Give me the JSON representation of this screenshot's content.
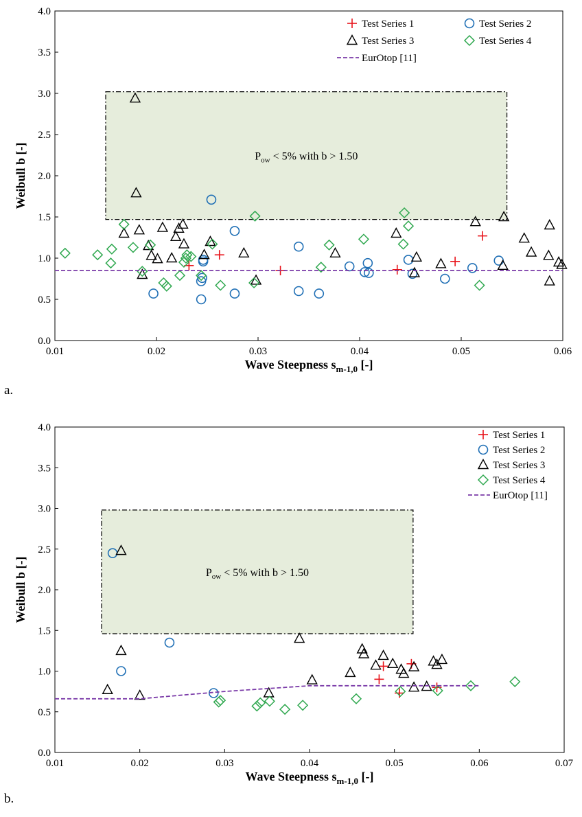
{
  "chart_data": [
    {
      "type": "scatter",
      "panel_label": "a.",
      "xlabel": "Wave Steepness s",
      "xlabel_sub": "m-1,0",
      "xlabel_suffix": " [-]",
      "ylabel": "Weibull b [-]",
      "xlim": [
        0.01,
        0.06
      ],
      "ylim": [
        0.0,
        4.0
      ],
      "x_ticks": [
        "0.01",
        "0.02",
        "0.03",
        "0.04",
        "0.05",
        "0.06"
      ],
      "y_ticks": [
        "0.0",
        "0.5",
        "1.0",
        "1.5",
        "2.0",
        "2.5",
        "3.0",
        "3.5",
        "4.0"
      ],
      "legend_placement": "top-right",
      "legend_columns": 2,
      "region": {
        "x": [
          0.015,
          0.0545
        ],
        "y": [
          1.47,
          3.02
        ],
        "label_pre": "P",
        "label_sub": "ow",
        "label_post": " < 5% with b > 1.50"
      },
      "series": [
        {
          "name": "Test Series 1",
          "marker": "plus",
          "color": "#e8141b",
          "points": [
            [
              0.0232,
              0.91
            ],
            [
              0.0262,
              1.04
            ],
            [
              0.0322,
              0.85
            ],
            [
              0.0437,
              0.86
            ],
            [
              0.0494,
              0.96
            ],
            [
              0.0521,
              1.27
            ]
          ]
        },
        {
          "name": "Test Series 2",
          "marker": "circle",
          "color": "#1f6fb5",
          "points": [
            [
              0.0197,
              0.57
            ],
            [
              0.0244,
              0.5
            ],
            [
              0.0244,
              0.72
            ],
            [
              0.0245,
              0.76
            ],
            [
              0.0246,
              0.96
            ],
            [
              0.0246,
              0.98
            ],
            [
              0.0254,
              1.71
            ],
            [
              0.0277,
              0.57
            ],
            [
              0.0277,
              1.33
            ],
            [
              0.034,
              0.6
            ],
            [
              0.034,
              1.14
            ],
            [
              0.036,
              0.57
            ],
            [
              0.039,
              0.9
            ],
            [
              0.0405,
              0.83
            ],
            [
              0.0408,
              0.94
            ],
            [
              0.0409,
              0.82
            ],
            [
              0.0448,
              0.98
            ],
            [
              0.0452,
              0.81
            ],
            [
              0.0484,
              0.75
            ],
            [
              0.0511,
              0.88
            ],
            [
              0.0537,
              0.97
            ]
          ]
        },
        {
          "name": "Test Series 3",
          "marker": "triangle",
          "color": "#000000",
          "points": [
            [
              0.0168,
              1.3
            ],
            [
              0.0179,
              2.94
            ],
            [
              0.018,
              1.79
            ],
            [
              0.0183,
              1.34
            ],
            [
              0.0186,
              0.8
            ],
            [
              0.0192,
              1.15
            ],
            [
              0.0195,
              1.03
            ],
            [
              0.0201,
              0.99
            ],
            [
              0.0206,
              1.37
            ],
            [
              0.0215,
              1.0
            ],
            [
              0.0219,
              1.26
            ],
            [
              0.0222,
              1.36
            ],
            [
              0.0226,
              1.41
            ],
            [
              0.0227,
              1.17
            ],
            [
              0.0247,
              1.04
            ],
            [
              0.0253,
              1.2
            ],
            [
              0.0286,
              1.06
            ],
            [
              0.0298,
              0.73
            ],
            [
              0.0376,
              1.06
            ],
            [
              0.0436,
              1.3
            ],
            [
              0.0454,
              0.82
            ],
            [
              0.0456,
              1.01
            ],
            [
              0.048,
              0.93
            ],
            [
              0.0514,
              1.44
            ],
            [
              0.0541,
              0.91
            ],
            [
              0.0542,
              1.5
            ],
            [
              0.0562,
              1.24
            ],
            [
              0.0569,
              1.07
            ],
            [
              0.0586,
              1.03
            ],
            [
              0.0587,
              1.4
            ],
            [
              0.0587,
              0.72
            ],
            [
              0.0596,
              0.95
            ],
            [
              0.0599,
              0.92
            ]
          ]
        },
        {
          "name": "Test Series 4",
          "marker": "diamond",
          "color": "#2fa84f",
          "points": [
            [
              0.011,
              1.06
            ],
            [
              0.0142,
              1.04
            ],
            [
              0.0155,
              0.94
            ],
            [
              0.0156,
              1.11
            ],
            [
              0.0168,
              1.41
            ],
            [
              0.0177,
              1.13
            ],
            [
              0.0186,
              0.84
            ],
            [
              0.0194,
              1.16
            ],
            [
              0.0207,
              0.7
            ],
            [
              0.021,
              0.66
            ],
            [
              0.0223,
              0.79
            ],
            [
              0.0227,
              0.95
            ],
            [
              0.0229,
              1.0
            ],
            [
              0.023,
              1.04
            ],
            [
              0.0234,
              1.02
            ],
            [
              0.0244,
              0.79
            ],
            [
              0.0255,
              1.17
            ],
            [
              0.0263,
              0.67
            ],
            [
              0.0296,
              0.7
            ],
            [
              0.0297,
              1.51
            ],
            [
              0.0362,
              0.89
            ],
            [
              0.037,
              1.16
            ],
            [
              0.0404,
              1.23
            ],
            [
              0.0443,
              1.17
            ],
            [
              0.0444,
              1.55
            ],
            [
              0.0448,
              1.39
            ],
            [
              0.0518,
              0.67
            ]
          ]
        },
        {
          "name": "EurOtop [11]",
          "marker": "line",
          "color": "#7a3aa8",
          "points": [
            [
              0.01,
              0.85
            ],
            [
              0.06,
              0.85
            ]
          ]
        }
      ]
    },
    {
      "type": "scatter",
      "panel_label": "b.",
      "xlabel": "Wave Steepness s",
      "xlabel_sub": "m-1,0",
      "xlabel_suffix": " [-]",
      "ylabel": "Weibull b [-]",
      "xlim": [
        0.01,
        0.07
      ],
      "ylim": [
        0.0,
        4.0
      ],
      "x_ticks": [
        "0.01",
        "0.02",
        "0.03",
        "0.04",
        "0.05",
        "0.06",
        "0.07"
      ],
      "y_ticks": [
        "0.0",
        "0.5",
        "1.0",
        "1.5",
        "2.0",
        "2.5",
        "3.0",
        "3.5",
        "4.0"
      ],
      "legend_placement": "top-right",
      "legend_columns": 1,
      "region": {
        "x": [
          0.0155,
          0.0522
        ],
        "y": [
          1.46,
          2.98
        ],
        "label_pre": "P",
        "label_sub": "ow",
        "label_post": " < 5% with b > 1.50"
      },
      "series": [
        {
          "name": "Test Series 1",
          "marker": "plus",
          "color": "#e8141b",
          "points": [
            [
              0.0482,
              0.9
            ],
            [
              0.0487,
              1.06
            ],
            [
              0.0506,
              0.73
            ],
            [
              0.052,
              1.09
            ],
            [
              0.055,
              0.8
            ]
          ]
        },
        {
          "name": "Test Series 2",
          "marker": "circle",
          "color": "#1f6fb5",
          "points": [
            [
              0.0168,
              2.45
            ],
            [
              0.0178,
              1.0
            ],
            [
              0.0235,
              1.35
            ],
            [
              0.0287,
              0.73
            ]
          ]
        },
        {
          "name": "Test Series 3",
          "marker": "triangle",
          "color": "#000000",
          "points": [
            [
              0.0162,
              0.77
            ],
            [
              0.0178,
              2.48
            ],
            [
              0.0178,
              1.25
            ],
            [
              0.02,
              0.7
            ],
            [
              0.0352,
              0.73
            ],
            [
              0.0388,
              1.4
            ],
            [
              0.0403,
              0.89
            ],
            [
              0.0448,
              0.98
            ],
            [
              0.0462,
              1.27
            ],
            [
              0.0464,
              1.21
            ],
            [
              0.0478,
              1.07
            ],
            [
              0.0487,
              1.19
            ],
            [
              0.0498,
              1.09
            ],
            [
              0.0508,
              1.02
            ],
            [
              0.0511,
              0.97
            ],
            [
              0.0523,
              1.05
            ],
            [
              0.0523,
              0.8
            ],
            [
              0.0538,
              0.81
            ],
            [
              0.0546,
              1.12
            ],
            [
              0.055,
              1.08
            ],
            [
              0.0556,
              1.14
            ]
          ]
        },
        {
          "name": "Test Series 4",
          "marker": "diamond",
          "color": "#2fa84f",
          "points": [
            [
              0.0293,
              0.62
            ],
            [
              0.0295,
              0.64
            ],
            [
              0.0338,
              0.57
            ],
            [
              0.0342,
              0.61
            ],
            [
              0.0353,
              0.63
            ],
            [
              0.0371,
              0.53
            ],
            [
              0.0392,
              0.58
            ],
            [
              0.0455,
              0.66
            ],
            [
              0.0507,
              0.75
            ],
            [
              0.0551,
              0.76
            ],
            [
              0.059,
              0.82
            ],
            [
              0.0642,
              0.87
            ]
          ]
        },
        {
          "name": "EurOtop [11]",
          "marker": "line",
          "color": "#7a3aa8",
          "points": [
            [
              0.01,
              0.66
            ],
            [
              0.02,
              0.66
            ],
            [
              0.03,
              0.75
            ],
            [
              0.04,
              0.82
            ],
            [
              0.05,
              0.82
            ],
            [
              0.06,
              0.82
            ]
          ]
        }
      ]
    }
  ]
}
